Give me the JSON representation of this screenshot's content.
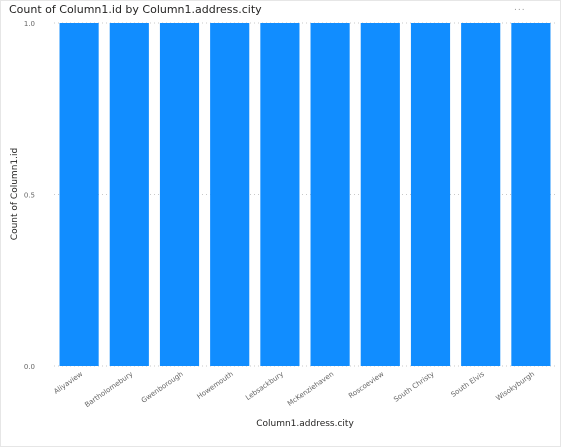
{
  "visual": {
    "more_options": "..."
  },
  "chart_data": {
    "type": "bar",
    "title": "Count of Column1.id by Column1.address.city",
    "xlabel": "Column1.address.city",
    "ylabel": "Count of Column1.id",
    "categories": [
      "Aliyaview",
      "Bartholomebury",
      "Gwenborough",
      "Howemouth",
      "Lebsackbury",
      "McKenziehaven",
      "Roscoeview",
      "South Christy",
      "South Elvis",
      "Wisokyburgh"
    ],
    "values": [
      1,
      1,
      1,
      1,
      1,
      1,
      1,
      1,
      1,
      1
    ],
    "ylim": [
      0,
      1
    ],
    "yticks": [
      "0.0",
      "0.5",
      "1.0"
    ],
    "grid": true,
    "bar_color": "#118DFF",
    "grid_color": "#c8c8c8"
  }
}
